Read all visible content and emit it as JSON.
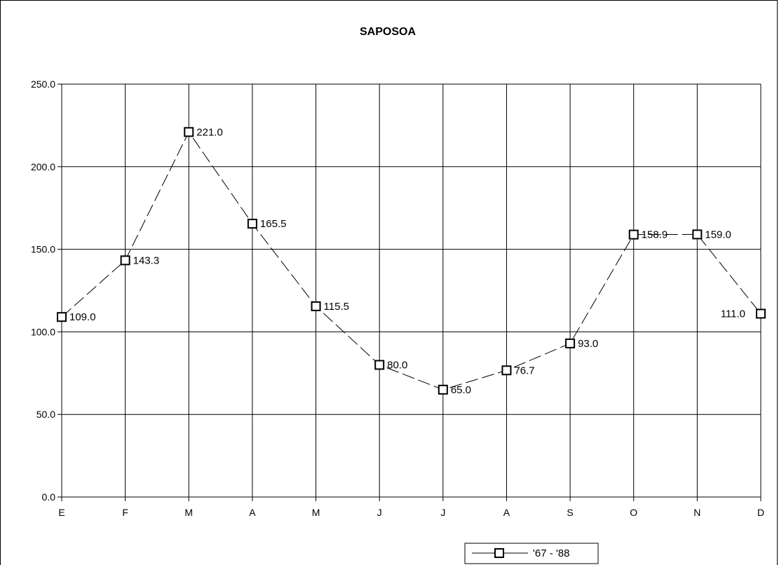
{
  "chart_data": {
    "type": "line",
    "title": "SAPOSOA",
    "xlabel": "",
    "ylabel": "",
    "categories": [
      "E",
      "F",
      "M",
      "A",
      "M",
      "J",
      "J",
      "A",
      "S",
      "O",
      "N",
      "D"
    ],
    "series": [
      {
        "name": "'67 - '88",
        "values": [
          109.0,
          143.3,
          221.0,
          165.5,
          115.5,
          80.0,
          65.0,
          76.7,
          93.0,
          158.9,
          159.0,
          111.0
        ],
        "labels": [
          "109.0",
          "143.3",
          "221.0",
          "165.5",
          "115.5",
          "80.0",
          "65.0",
          "76.7",
          "93.0",
          "158.9",
          "159.0",
          "111.0"
        ],
        "line_style": "dashed",
        "marker": "hollow-square"
      }
    ],
    "ylim": [
      0,
      250
    ],
    "yticks": [
      "0.0",
      "50.0",
      "100.0",
      "150.0",
      "200.0",
      "250.0"
    ],
    "grid": true,
    "legend": "bottom",
    "colors": {
      "line": "#000000",
      "grid": "#000000",
      "background": "#ffffff"
    }
  }
}
